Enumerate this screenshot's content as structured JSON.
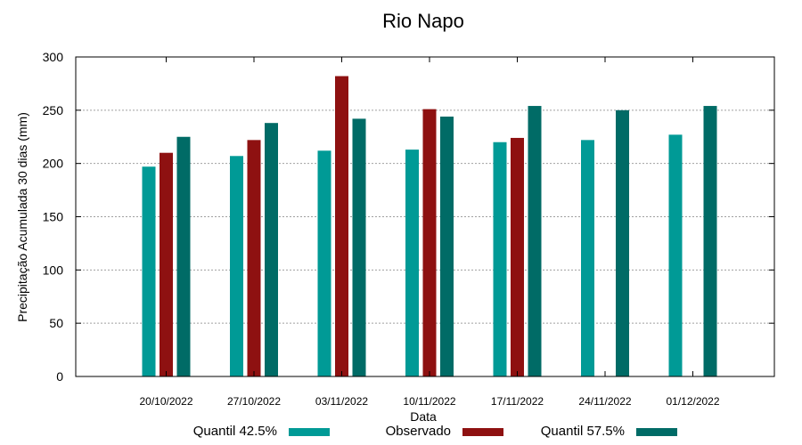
{
  "chart_data": {
    "type": "bar",
    "title": "Rio Napo",
    "xlabel": "Data",
    "ylabel": "Precipitação Acumulada 30 dias (mm)",
    "ylim": [
      0,
      300
    ],
    "yticks": [
      "0",
      "50",
      "100",
      "150",
      "200",
      "250",
      "300"
    ],
    "grid": true,
    "legend_position": "bottom",
    "categories": [
      "20/10/2022",
      "27/10/2022",
      "03/11/2022",
      "10/11/2022",
      "17/11/2022",
      "24/11/2022",
      "01/12/2022"
    ],
    "series": [
      {
        "name": "Quantil 42.5%",
        "color": "#009a96",
        "values": [
          197,
          207,
          212,
          213,
          220,
          222,
          227
        ]
      },
      {
        "name": "Observado",
        "color": "#8e1111",
        "values": [
          210,
          222,
          282,
          251,
          224,
          null,
          null
        ]
      },
      {
        "name": "Quantil 57.5%",
        "color": "#006b66",
        "values": [
          225,
          238,
          242,
          244,
          254,
          250,
          254
        ]
      }
    ]
  }
}
